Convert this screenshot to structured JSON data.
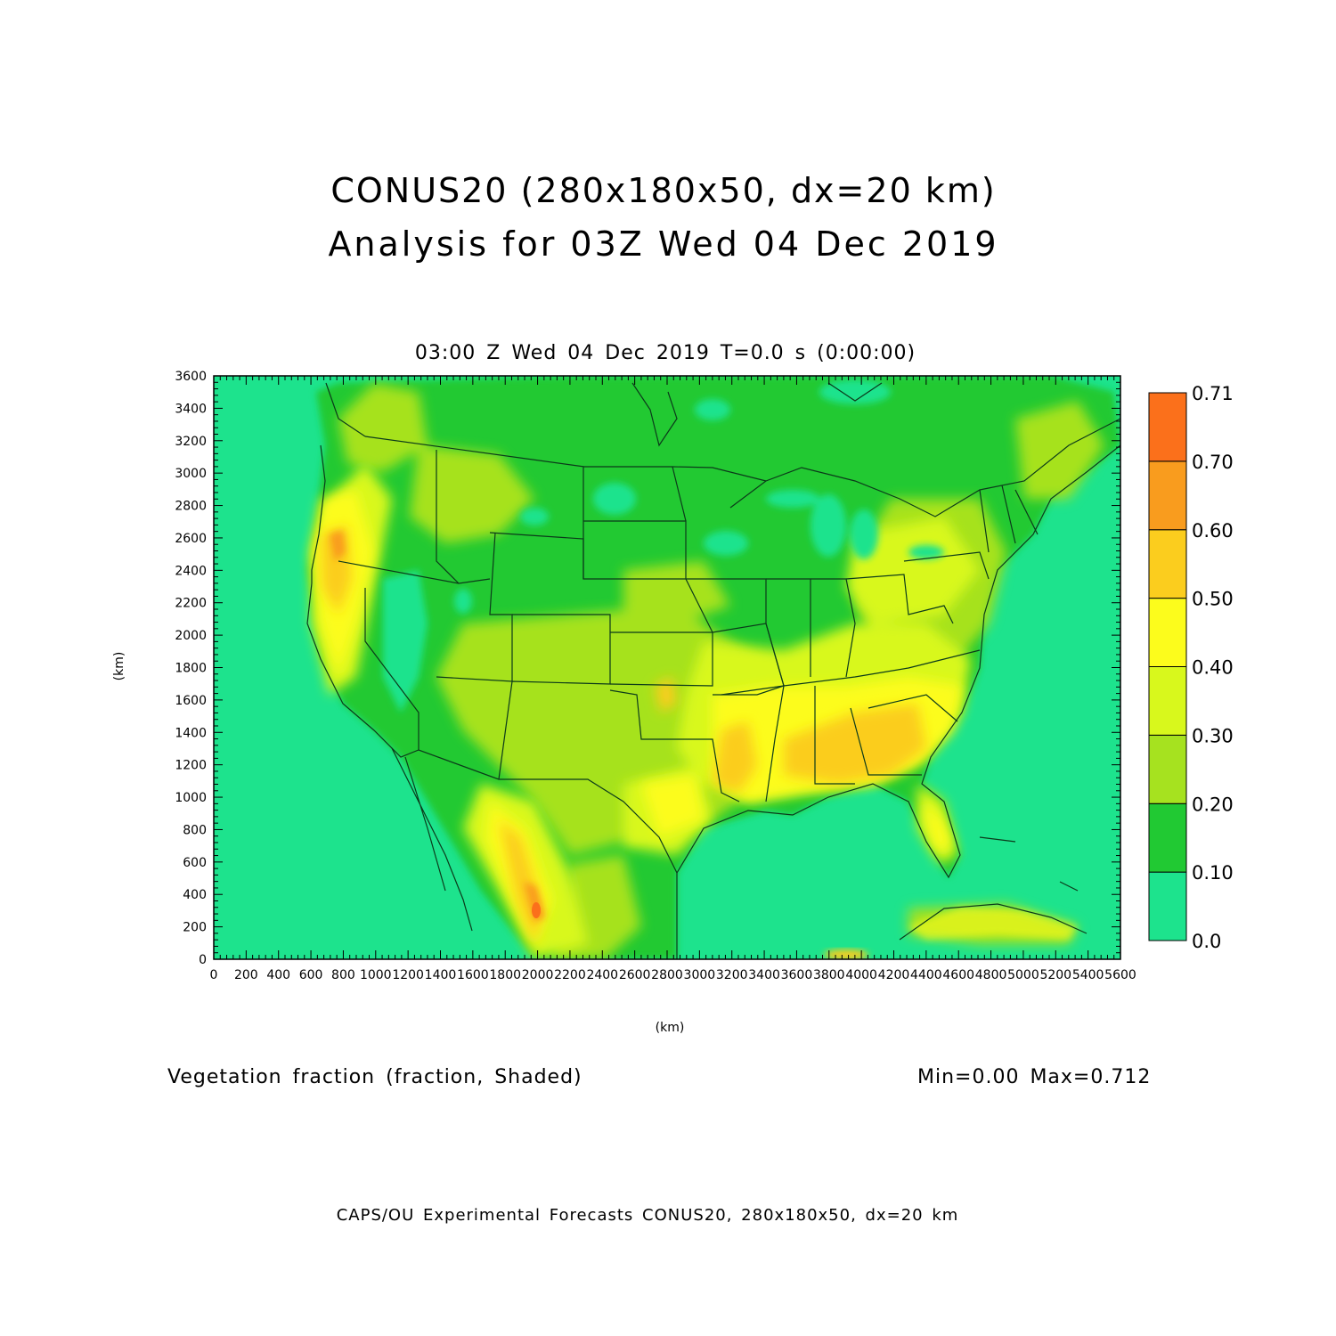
{
  "title_line1": "CONUS20 (280x180x50, dx=20 km)",
  "title_line2": "Analysis for 03Z Wed 04 Dec 2019",
  "subtitle": "03:00 Z Wed 04 Dec 2019    T=0.0 s (0:00:00)",
  "field_label": "Vegetation fraction (fraction, Shaded)",
  "minmax": "Min=0.00 Max=0.712",
  "footer": "CAPS/OU Experimental Forecasts  CONUS20, 280x180x50, dx=20 km",
  "axes": {
    "x_label": "(km)",
    "y_label": "(km)",
    "x_range": [
      0,
      5600
    ],
    "y_range": [
      0,
      3600
    ],
    "x_ticks": [
      "0",
      "200",
      "400",
      "600",
      "800",
      "1000",
      "1200",
      "1400",
      "1600",
      "1800",
      "2000",
      "2200",
      "2400",
      "2600",
      "2800",
      "3000",
      "3200",
      "3400",
      "3600",
      "3800",
      "4000",
      "4200",
      "4400",
      "4600",
      "4800",
      "5000",
      "5200",
      "5400",
      "5600"
    ],
    "y_ticks": [
      "0",
      "200",
      "400",
      "600",
      "800",
      "1000",
      "1200",
      "1400",
      "1600",
      "1800",
      "2000",
      "2200",
      "2400",
      "2600",
      "2800",
      "3000",
      "3200",
      "3400",
      "3600"
    ]
  },
  "colorbar": {
    "labels": [
      "0.0",
      "0.10",
      "0.20",
      "0.30",
      "0.40",
      "0.50",
      "0.60",
      "0.70",
      "0.71"
    ],
    "colors": [
      "#1de38d",
      "#21c933",
      "#a6e21f",
      "#d8f81c",
      "#fcfc1c",
      "#fbcd1e",
      "#f99c1e",
      "#fb701b"
    ]
  },
  "colors": {
    "ocean": "#1de38d",
    "outline": "#0b3a1a"
  }
}
